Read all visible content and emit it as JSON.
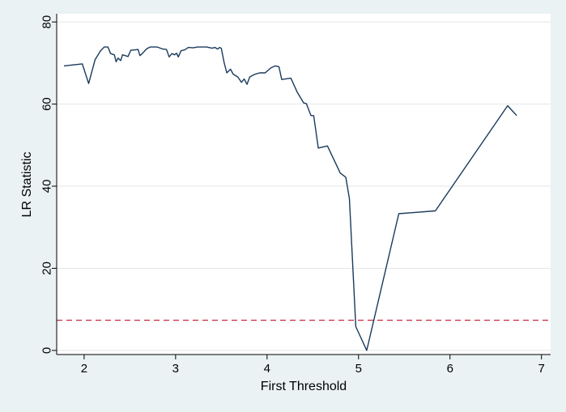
{
  "chart_data": {
    "type": "line",
    "title": "",
    "xlabel": "First Threshold",
    "ylabel": "LR Statistic",
    "xlim": [
      1.7,
      7.1
    ],
    "ylim": [
      -1,
      82
    ],
    "xticks": [
      2,
      3,
      4,
      5,
      6,
      7
    ],
    "yticks": [
      0,
      20,
      40,
      60,
      80
    ],
    "grid": "horizontal",
    "legend": "none",
    "colors": {
      "background": "#eaf2f3",
      "plot_background": "#ffffff",
      "series_line": "#1a3a5c",
      "critical_line": "#c8283c",
      "grid": "#e3e6e8"
    },
    "series": [
      {
        "points": [
          [
            1.78,
            69.3
          ],
          [
            1.98,
            69.8
          ],
          [
            2.05,
            65.0
          ],
          [
            2.12,
            70.8
          ],
          [
            2.18,
            73.0
          ],
          [
            2.22,
            73.9
          ],
          [
            2.26,
            73.9
          ],
          [
            2.29,
            72.3
          ],
          [
            2.33,
            72.0
          ],
          [
            2.35,
            70.3
          ],
          [
            2.37,
            71.2
          ],
          [
            2.4,
            70.6
          ],
          [
            2.42,
            72.0
          ],
          [
            2.48,
            71.6
          ],
          [
            2.51,
            73.1
          ],
          [
            2.56,
            73.2
          ],
          [
            2.59,
            73.3
          ],
          [
            2.61,
            71.8
          ],
          [
            2.64,
            72.4
          ],
          [
            2.68,
            73.4
          ],
          [
            2.72,
            73.9
          ],
          [
            2.8,
            73.9
          ],
          [
            2.86,
            73.4
          ],
          [
            2.9,
            73.3
          ],
          [
            2.93,
            71.5
          ],
          [
            2.96,
            72.3
          ],
          [
            2.99,
            72.0
          ],
          [
            3.01,
            72.4
          ],
          [
            3.03,
            71.5
          ],
          [
            3.06,
            73.0
          ],
          [
            3.1,
            73.2
          ],
          [
            3.14,
            73.8
          ],
          [
            3.19,
            73.7
          ],
          [
            3.24,
            73.9
          ],
          [
            3.34,
            73.9
          ],
          [
            3.4,
            73.6
          ],
          [
            3.43,
            73.8
          ],
          [
            3.46,
            73.4
          ],
          [
            3.48,
            73.8
          ],
          [
            3.5,
            73.6
          ],
          [
            3.53,
            70.2
          ],
          [
            3.56,
            67.6
          ],
          [
            3.6,
            68.5
          ],
          [
            3.63,
            67.3
          ],
          [
            3.68,
            66.6
          ],
          [
            3.72,
            65.3
          ],
          [
            3.75,
            66.1
          ],
          [
            3.78,
            64.8
          ],
          [
            3.81,
            66.6
          ],
          [
            3.86,
            67.2
          ],
          [
            3.92,
            67.6
          ],
          [
            3.98,
            67.6
          ],
          [
            4.04,
            68.8
          ],
          [
            4.09,
            69.3
          ],
          [
            4.13,
            69.1
          ],
          [
            4.16,
            66.0
          ],
          [
            4.26,
            66.3
          ],
          [
            4.33,
            62.9
          ],
          [
            4.4,
            60.3
          ],
          [
            4.43,
            60.1
          ],
          [
            4.48,
            57.2
          ],
          [
            4.51,
            57.2
          ],
          [
            4.56,
            49.3
          ],
          [
            4.66,
            49.8
          ],
          [
            4.8,
            43.2
          ],
          [
            4.86,
            42.2
          ],
          [
            4.9,
            37.0
          ],
          [
            4.97,
            5.8
          ],
          [
            5.09,
            0.0
          ],
          [
            5.44,
            33.3
          ],
          [
            5.84,
            34.0
          ],
          [
            6.63,
            59.6
          ],
          [
            6.73,
            57.2
          ]
        ]
      }
    ],
    "reference_lines": [
      {
        "y": 7.35,
        "style": "dashed"
      }
    ]
  }
}
